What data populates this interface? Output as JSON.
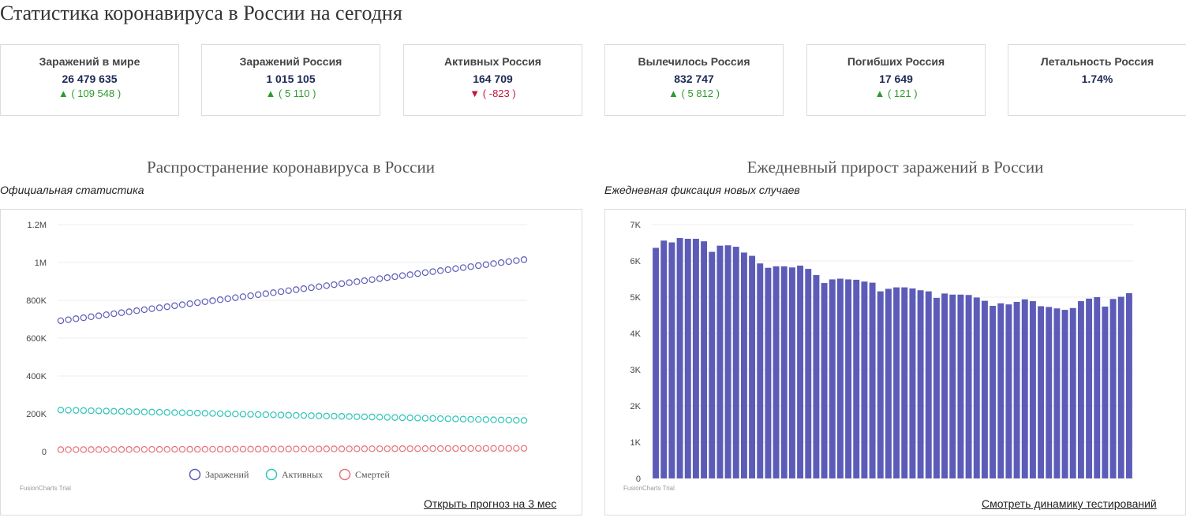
{
  "page_title": "Статистика коронавируса в России на сегодня",
  "cards": [
    {
      "label": "Заражений в мире",
      "value": "26 479 635",
      "delta": "( 109 548 )",
      "direction": "up"
    },
    {
      "label": "Заражений Россия",
      "value": "1 015 105",
      "delta": "( 5 110 )",
      "direction": "up"
    },
    {
      "label": "Активных Россия",
      "value": "164 709",
      "delta": "( -823 )",
      "direction": "down"
    },
    {
      "label": "Вылечилось Россия",
      "value": "832 747",
      "delta": "( 5 812 )",
      "direction": "up"
    },
    {
      "label": "Погибших Россия",
      "value": "17 649",
      "delta": "( 121 )",
      "direction": "up"
    },
    {
      "label": "Летальность Россия",
      "value": "1.74%",
      "delta": "",
      "direction": ""
    }
  ],
  "arrows": {
    "up": "▲",
    "down": "▼"
  },
  "colors": {
    "up": "#2e9a2e",
    "down": "#c0143c",
    "bar": "#5c5cb8",
    "infected": "#5c5cb8",
    "active": "#2ec4b6",
    "deaths": "#e8707a",
    "grid": "#ededed"
  },
  "charts": {
    "left": {
      "title": "Распространение коронавируса в России",
      "subtitle": "Официальная статистика",
      "trial": "FusionCharts Trial",
      "link": "Открыть прогноз на 3 мес"
    },
    "right": {
      "title": "Ежедневный прирост заражений в России",
      "subtitle": "Ежедневная фиксация новых случаев",
      "trial": "FusionCharts Trial",
      "link": "Смотреть динамику тестирований"
    }
  },
  "chart_data": [
    {
      "type": "line",
      "title": "Распространение коронавируса в России",
      "subtitle": "Официальная статистика",
      "ylim": [
        0,
        1200000
      ],
      "y_ticks": [
        0,
        200000,
        400000,
        600000,
        800000,
        1000000,
        1200000
      ],
      "y_tick_labels": [
        "0",
        "200K",
        "400K",
        "600K",
        "800K",
        "1M",
        "1.2M"
      ],
      "grid": true,
      "legend": "bottom",
      "series": [
        {
          "name": "Заражений",
          "start": 692000,
          "end": 1015105,
          "points": 62
        },
        {
          "name": "Активных",
          "start": 220000,
          "end": 164709,
          "points": 62
        },
        {
          "name": "Смертей",
          "start": 10500,
          "end": 17649,
          "points": 62
        }
      ]
    },
    {
      "type": "bar",
      "title": "Ежедневный прирост заражений в России",
      "subtitle": "Ежедневная фиксация новых случаев",
      "ylim": [
        0,
        7000
      ],
      "y_ticks": [
        0,
        1000,
        2000,
        3000,
        4000,
        5000,
        6000,
        7000
      ],
      "y_tick_labels": [
        "0",
        "1K",
        "2K",
        "3K",
        "4K",
        "5K",
        "6K",
        "7K"
      ],
      "grid": true,
      "values": [
        6360,
        6560,
        6510,
        6630,
        6610,
        6610,
        6540,
        6250,
        6420,
        6430,
        6390,
        6230,
        6140,
        5930,
        5810,
        5850,
        5850,
        5820,
        5870,
        5780,
        5610,
        5390,
        5490,
        5510,
        5490,
        5480,
        5430,
        5400,
        5160,
        5230,
        5270,
        5270,
        5240,
        5190,
        5160,
        4980,
        5100,
        5070,
        5070,
        5060,
        4990,
        4900,
        4760,
        4830,
        4800,
        4870,
        4940,
        4890,
        4750,
        4730,
        4690,
        4650,
        4700,
        4890,
        4960,
        5000,
        4740,
        4950,
        5010,
        5110
      ]
    }
  ]
}
